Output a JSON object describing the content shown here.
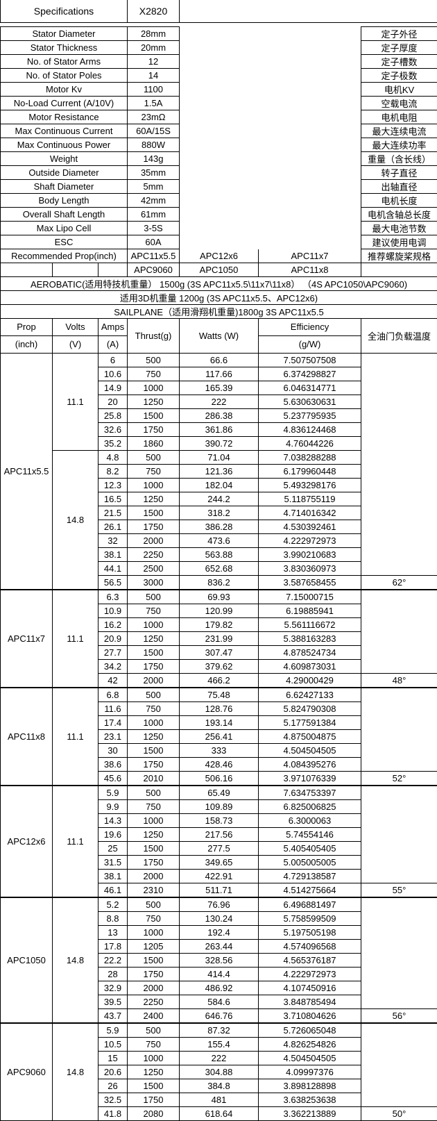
{
  "spec_header": {
    "label": "Specifications",
    "value": "X2820"
  },
  "specs": [
    {
      "label": "Stator Diameter",
      "value": "28mm",
      "cn": "定子外径"
    },
    {
      "label": "Stator Thickness",
      "value": "20mm",
      "cn": "定子厚度"
    },
    {
      "label": "No. of Stator Arms",
      "value": "12",
      "cn": "定子槽数"
    },
    {
      "label": "No. of Stator Poles",
      "value": "14",
      "cn": "定子极数"
    },
    {
      "label": "Motor Kv",
      "value": "1100",
      "cn": "电机KV"
    },
    {
      "label": "No-Load Current (A/10V)",
      "value": "1.5A",
      "cn": "空载电流"
    },
    {
      "label": "Motor Resistance",
      "value": "23mΩ",
      "cn": "电机电阻"
    },
    {
      "label": "Max Continuous Current",
      "value": "60A/15S",
      "cn": "最大连续电流"
    },
    {
      "label": "Max Continuous Power",
      "value": "880W",
      "cn": "最大连续功率"
    },
    {
      "label": "Weight",
      "value": "143g",
      "cn": "重量（含长线）"
    },
    {
      "label": "Outside Diameter",
      "value": "35mm",
      "cn": "转子直径"
    },
    {
      "label": "Shaft Diameter",
      "value": "5mm",
      "cn": "出轴直径"
    },
    {
      "label": "Body Length",
      "value": "42mm",
      "cn": "电机长度"
    },
    {
      "label": "Overall Shaft Length",
      "value": "61mm",
      "cn": "电机含轴总长度"
    },
    {
      "label": "Max Lipo Cell",
      "value": "3-5S",
      "cn": "最大电池节数"
    },
    {
      "label": "ESC",
      "value": "60A",
      "cn": "建议使用电调"
    }
  ],
  "recommended": {
    "label": "Recommended Prop(inch)",
    "row1": [
      "APC11x5.5",
      "APC12x6",
      "APC11x7"
    ],
    "row2": [
      "APC9060",
      "APC1050",
      "APC11x8"
    ],
    "cn": "推荐螺旋桨规格"
  },
  "notes": [
    "AEROBATIC(适用特技机重量） 1500g (3S APC11x5.5\\11x7\\11x8） （4S APC1050\\APC9060)",
    "适用3D机重量 1200g (3S APC11x5.5、APC12x6)",
    "SAILPLANE（适用滑翔机重量)1800g 3S APC11x5.5"
  ],
  "test_table": {
    "header": {
      "prop": "Prop",
      "prop2": "(inch)",
      "volts": "Volts",
      "volts2": "(V)",
      "amps": "Amps",
      "amps2": "(A)",
      "thrust": "Thrust(g)",
      "watts": "Watts (W)",
      "eff": "Efficiency",
      "eff2": "(g/W)",
      "temp": "全油门负载温度"
    },
    "blocks": [
      {
        "prop": "APC11x5.5",
        "temp": "62°",
        "volt_groups": [
          {
            "volts": "11.1",
            "rows": [
              [
                "6",
                "500",
                "66.6",
                "7.507507508"
              ],
              [
                "10.6",
                "750",
                "117.66",
                "6.374298827"
              ],
              [
                "14.9",
                "1000",
                "165.39",
                "6.046314771"
              ],
              [
                "20",
                "1250",
                "222",
                "5.630630631"
              ],
              [
                "25.8",
                "1500",
                "286.38",
                "5.237795935"
              ],
              [
                "32.6",
                "1750",
                "361.86",
                "4.836124468"
              ],
              [
                "35.2",
                "1860",
                "390.72",
                "4.76044226"
              ]
            ]
          },
          {
            "volts": "14.8",
            "rows": [
              [
                "4.8",
                "500",
                "71.04",
                "7.038288288"
              ],
              [
                "8.2",
                "750",
                "121.36",
                "6.179960448"
              ],
              [
                "12.3",
                "1000",
                "182.04",
                "5.493298176"
              ],
              [
                "16.5",
                "1250",
                "244.2",
                "5.118755119"
              ],
              [
                "21.5",
                "1500",
                "318.2",
                "4.714016342"
              ],
              [
                "26.1",
                "1750",
                "386.28",
                "4.530392461"
              ],
              [
                "32",
                "2000",
                "473.6",
                "4.222972973"
              ],
              [
                "38.1",
                "2250",
                "563.88",
                "3.990210683"
              ],
              [
                "44.1",
                "2500",
                "652.68",
                "3.830360973"
              ],
              [
                "56.5",
                "3000",
                "836.2",
                "3.587658455"
              ]
            ]
          }
        ]
      },
      {
        "prop": "APC11x7",
        "temp": "48°",
        "volt_groups": [
          {
            "volts": "11.1",
            "rows": [
              [
                "6.3",
                "500",
                "69.93",
                "7.15000715"
              ],
              [
                "10.9",
                "750",
                "120.99",
                "6.19885941"
              ],
              [
                "16.2",
                "1000",
                "179.82",
                "5.561116672"
              ],
              [
                "20.9",
                "1250",
                "231.99",
                "5.388163283"
              ],
              [
                "27.7",
                "1500",
                "307.47",
                "4.878524734"
              ],
              [
                "34.2",
                "1750",
                "379.62",
                "4.609873031"
              ],
              [
                "42",
                "2000",
                "466.2",
                "4.29000429"
              ]
            ]
          }
        ]
      },
      {
        "prop": "APC11x8",
        "temp": "52°",
        "volt_groups": [
          {
            "volts": "11.1",
            "rows": [
              [
                "6.8",
                "500",
                "75.48",
                "6.62427133"
              ],
              [
                "11.6",
                "750",
                "128.76",
                "5.824790308"
              ],
              [
                "17.4",
                "1000",
                "193.14",
                "5.177591384"
              ],
              [
                "23.1",
                "1250",
                "256.41",
                "4.875004875"
              ],
              [
                "30",
                "1500",
                "333",
                "4.504504505"
              ],
              [
                "38.6",
                "1750",
                "428.46",
                "4.084395276"
              ],
              [
                "45.6",
                "2010",
                "506.16",
                "3.971076339"
              ]
            ]
          }
        ]
      },
      {
        "prop": "APC12x6",
        "temp": "55°",
        "volt_groups": [
          {
            "volts": "11.1",
            "rows": [
              [
                "5.9",
                "500",
                "65.49",
                "7.634753397"
              ],
              [
                "9.9",
                "750",
                "109.89",
                "6.825006825"
              ],
              [
                "14.3",
                "1000",
                "158.73",
                "6.3000063"
              ],
              [
                "19.6",
                "1250",
                "217.56",
                "5.74554146"
              ],
              [
                "25",
                "1500",
                "277.5",
                "5.405405405"
              ],
              [
                "31.5",
                "1750",
                "349.65",
                "5.005005005"
              ],
              [
                "38.1",
                "2000",
                "422.91",
                "4.729138587"
              ],
              [
                "46.1",
                "2310",
                "511.71",
                "4.514275664"
              ]
            ]
          }
        ]
      },
      {
        "prop": "APC1050",
        "temp": "56°",
        "volt_groups": [
          {
            "volts": "14.8",
            "rows": [
              [
                "5.2",
                "500",
                "76.96",
                "6.496881497"
              ],
              [
                "8.8",
                "750",
                "130.24",
                "5.758599509"
              ],
              [
                "13",
                "1000",
                "192.4",
                "5.197505198"
              ],
              [
                "17.8",
                "1205",
                "263.44",
                "4.574096568"
              ],
              [
                "22.2",
                "1500",
                "328.56",
                "4.565376187"
              ],
              [
                "28",
                "1750",
                "414.4",
                "4.222972973"
              ],
              [
                "32.9",
                "2000",
                "486.92",
                "4.107450916"
              ],
              [
                "39.5",
                "2250",
                "584.6",
                "3.848785494"
              ],
              [
                "43.7",
                "2400",
                "646.76",
                "3.710804626"
              ]
            ]
          }
        ]
      },
      {
        "prop": "APC9060",
        "temp": "50°",
        "volt_groups": [
          {
            "volts": "14.8",
            "rows": [
              [
                "5.9",
                "500",
                "87.32",
                "5.726065048"
              ],
              [
                "10.5",
                "750",
                "155.4",
                "4.826254826"
              ],
              [
                "15",
                "1000",
                "222",
                "4.504504505"
              ],
              [
                "20.6",
                "1250",
                "304.88",
                "4.09997376"
              ],
              [
                "26",
                "1500",
                "384.8",
                "3.898128898"
              ],
              [
                "32.5",
                "1750",
                "481",
                "3.638253638"
              ],
              [
                "41.8",
                "2080",
                "618.64",
                "3.362213889"
              ]
            ]
          }
        ]
      }
    ]
  }
}
